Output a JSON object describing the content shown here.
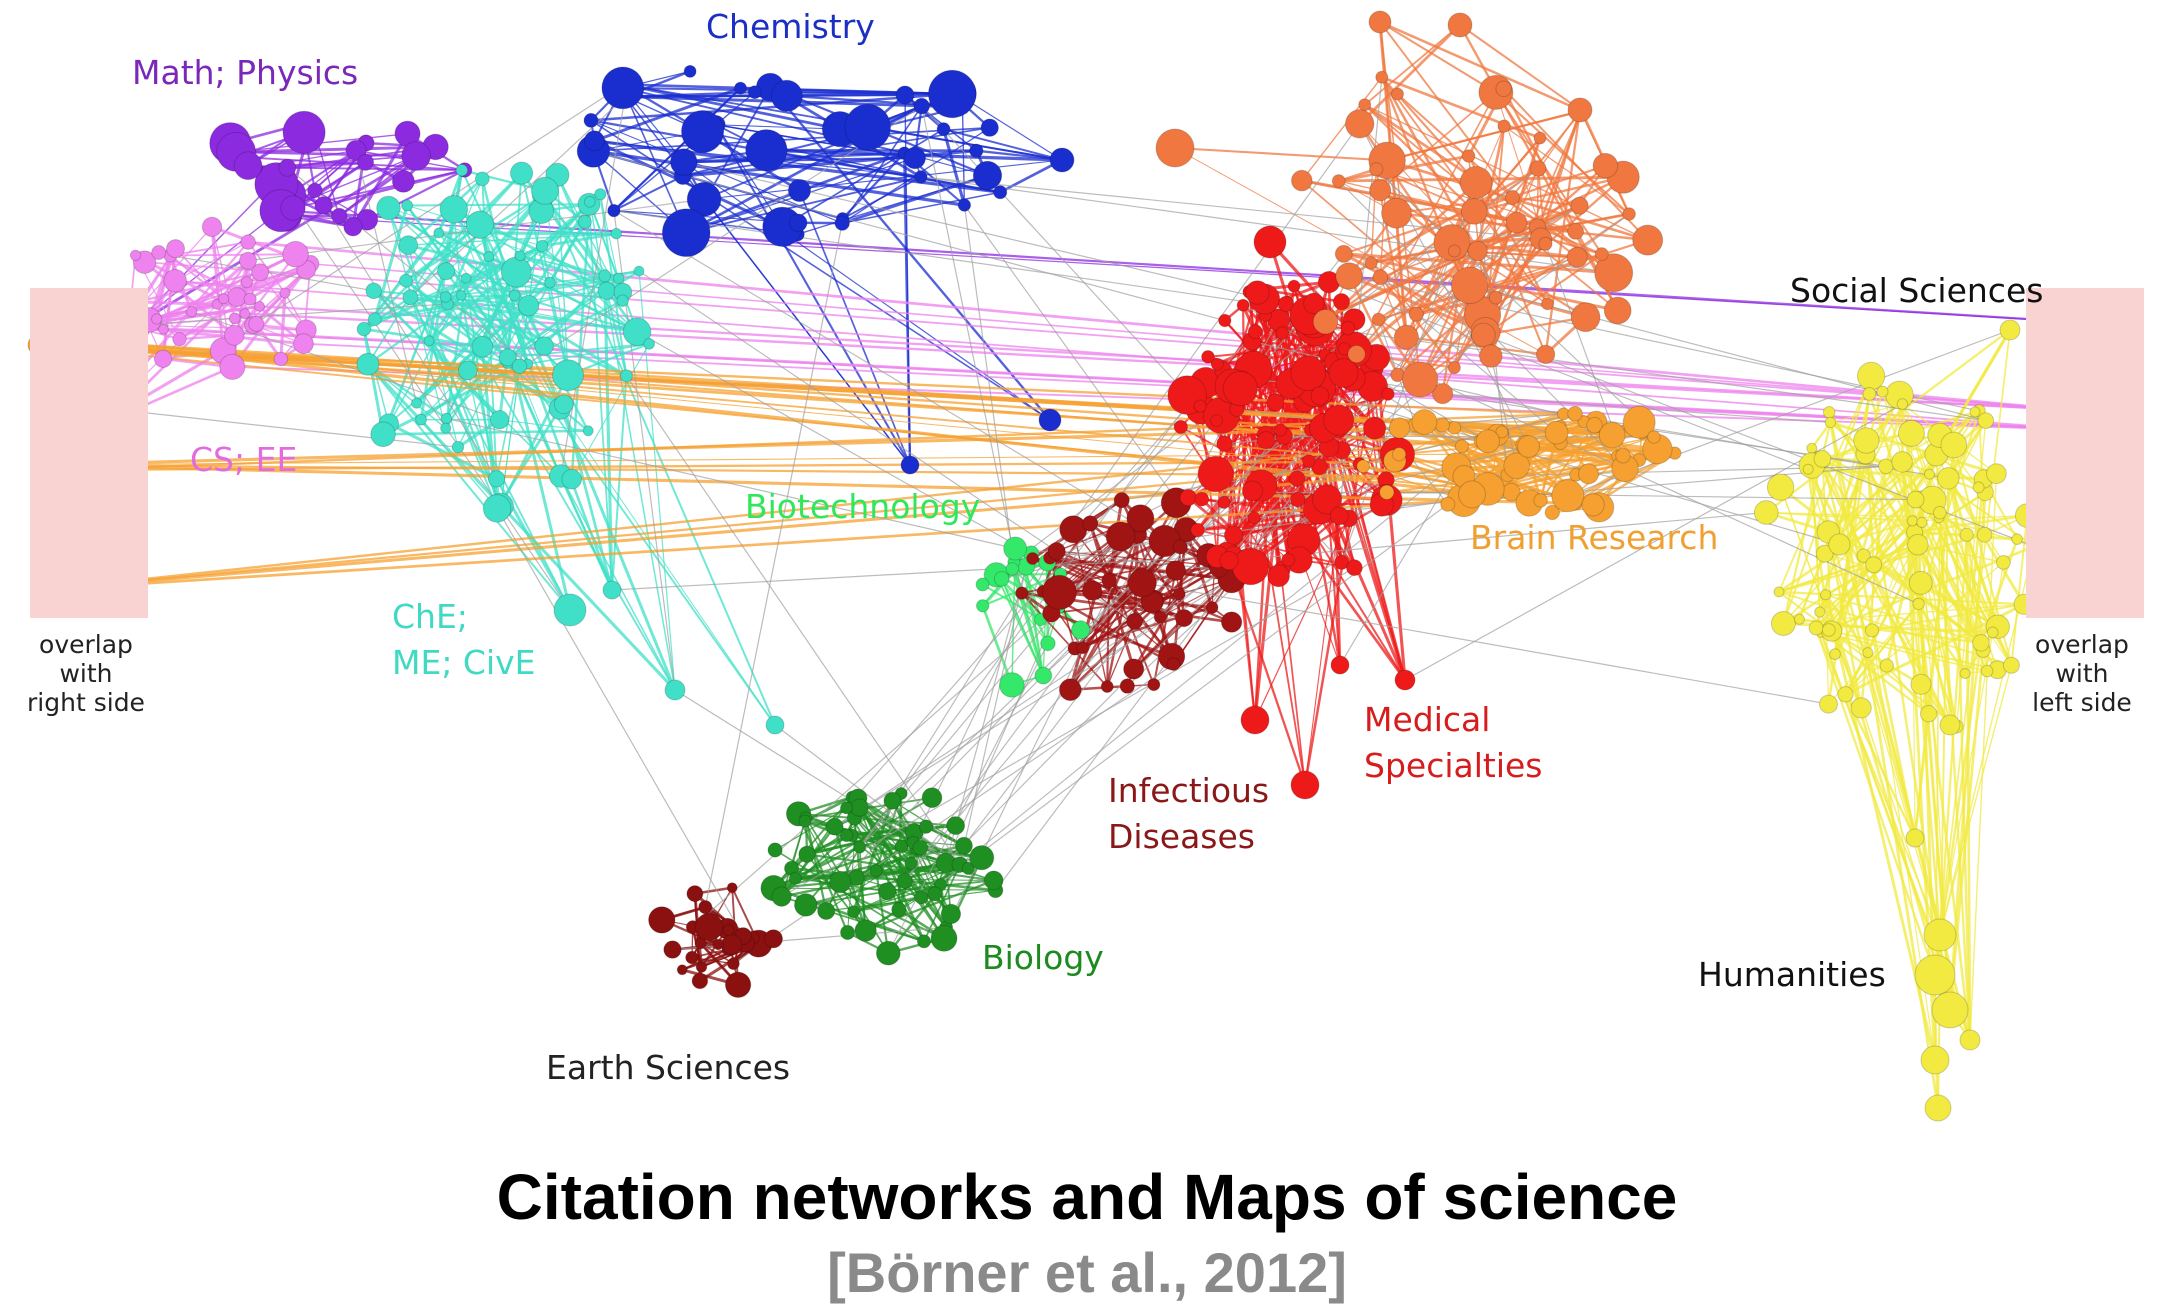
{
  "diagram": {
    "regions": [
      {
        "id": "math_physics",
        "label": [
          "Math; Physics"
        ],
        "color": "#7b28b8"
      },
      {
        "id": "chemistry",
        "label": [
          "Chemistry"
        ],
        "color": "#1c2fc4"
      },
      {
        "id": "cs_ee",
        "label": [
          "CS; EE"
        ],
        "color": "#e36be0"
      },
      {
        "id": "che_me_cive",
        "label": [
          "ChE;",
          "ME; CivE"
        ],
        "color": "#3fd9c4"
      },
      {
        "id": "biotechnology",
        "label": [
          "Biotechnology"
        ],
        "color": "#2ee85a"
      },
      {
        "id": "biology",
        "label": [
          "Biology"
        ],
        "color": "#1c8a1f"
      },
      {
        "id": "earth_sciences",
        "label": [
          "Earth Sciences"
        ],
        "color": "#222222"
      },
      {
        "id": "infectious_diseases",
        "label": [
          "Infectious",
          "Diseases"
        ],
        "color": "#8a1818"
      },
      {
        "id": "medical_specialties",
        "label": [
          "Medical",
          "Specialties"
        ],
        "color": "#d61c1c"
      },
      {
        "id": "brain_research",
        "label": [
          "Brain Research"
        ],
        "color": "#f0a030"
      },
      {
        "id": "social_sciences",
        "label": [
          "Social Sciences"
        ],
        "color": "#111111"
      },
      {
        "id": "humanities",
        "label": [
          "Humanities"
        ],
        "color": "#111111"
      }
    ],
    "cluster_colors": {
      "math_physics": "#8c2ae0",
      "chemistry": "#1a2ed0",
      "cs_ee": "#ee82ee",
      "che_me_cive": "#40e0c8",
      "biotechnology": "#34e86a",
      "biology": "#1f8f22",
      "earth_sciences": "#8b1010",
      "infectious_diseases": "#a01414",
      "medical_specialties": "#ee1a1a",
      "orange_upper": "#f07840",
      "brain_research": "#f5a030",
      "social_humanities": "#f2ea40",
      "link_gray": "#a0a0a0"
    },
    "overlap_notes": {
      "left": [
        "overlap",
        "with",
        "right side"
      ],
      "right": [
        "overlap",
        "with",
        "left side"
      ]
    }
  },
  "title": "Citation networks and Maps of science",
  "citation": "[Börner et al., 2012]"
}
